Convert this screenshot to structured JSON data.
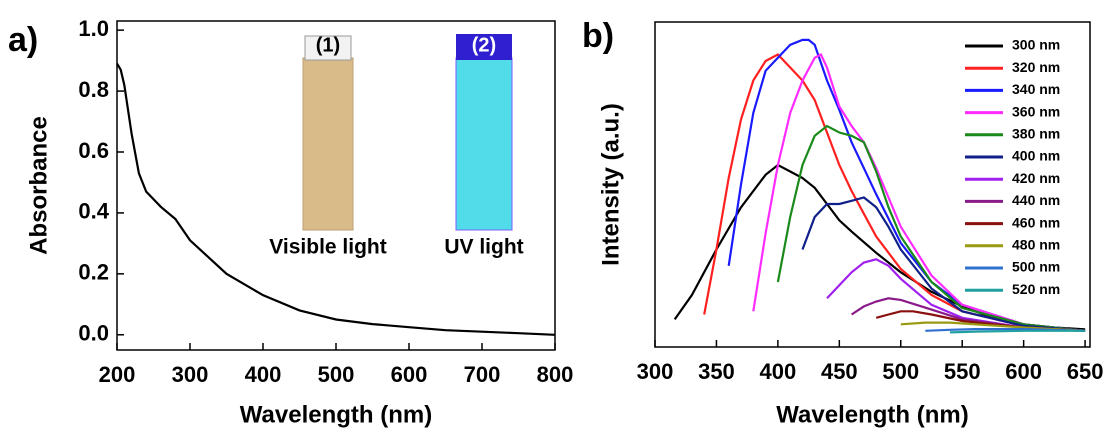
{
  "chart_data": [
    {
      "type": "line",
      "panel_label": "a)",
      "xlabel": "Wavelength (nm)",
      "ylabel": "Absorbance",
      "inset_labels": [
        "(1)",
        "(2)"
      ],
      "inset_captions": [
        "Visible light",
        "UV light"
      ],
      "xlim": [
        200,
        800
      ],
      "xticks": [
        200,
        300,
        400,
        500,
        600,
        700,
        800
      ],
      "ylim": [
        -0.05,
        1.03
      ],
      "yticks": [
        {
          "value": 0,
          "label": "0.0"
        },
        0.2,
        0.4,
        0.6,
        0.8,
        {
          "value": 1,
          "label": "1.0"
        }
      ],
      "series": [
        {
          "color": "#000000",
          "x": [
            200,
            205,
            210,
            220,
            230,
            240,
            260,
            280,
            300,
            350,
            400,
            450,
            500,
            550,
            600,
            650,
            700,
            750,
            800
          ],
          "values": [
            0.89,
            0.87,
            0.82,
            0.66,
            0.53,
            0.47,
            0.42,
            0.38,
            0.31,
            0.2,
            0.13,
            0.08,
            0.05,
            0.035,
            0.025,
            0.015,
            0.01,
            0.005,
            0.0
          ]
        }
      ]
    },
    {
      "type": "line",
      "panel_label": "b)",
      "xlabel": "Wavelength (nm)",
      "ylabel": "Intensity (a.u.)",
      "xlim": [
        300,
        654
      ],
      "xticks": [
        300,
        350,
        400,
        450,
        500,
        550,
        600,
        650
      ],
      "ylim": [
        0,
        1
      ],
      "series": [
        {
          "name": "300 nm",
          "color": "#000000",
          "x": [
            316,
            330,
            350,
            370,
            390,
            400,
            410,
            420,
            430,
            440,
            450,
            460,
            480,
            500,
            525,
            550,
            575,
            600,
            625,
            650
          ],
          "values": [
            0.085,
            0.16,
            0.3,
            0.43,
            0.53,
            0.56,
            0.54,
            0.52,
            0.49,
            0.44,
            0.39,
            0.355,
            0.29,
            0.23,
            0.17,
            0.125,
            0.09,
            0.07,
            0.06,
            0.054
          ]
        },
        {
          "name": "320 nm",
          "color": "#ff2020",
          "x": [
            340,
            350,
            360,
            370,
            380,
            390,
            400,
            410,
            420,
            430,
            440,
            450,
            460,
            470,
            480,
            500,
            525,
            550,
            600,
            650
          ],
          "values": [
            0.1,
            0.3,
            0.52,
            0.7,
            0.82,
            0.88,
            0.9,
            0.86,
            0.82,
            0.76,
            0.66,
            0.56,
            0.48,
            0.41,
            0.34,
            0.24,
            0.16,
            0.11,
            0.065,
            0.05
          ]
        },
        {
          "name": "340 nm",
          "color": "#1a1aff",
          "x": [
            360,
            370,
            380,
            390,
            400,
            410,
            420,
            425,
            430,
            440,
            450,
            460,
            470,
            480,
            500,
            525,
            550,
            600,
            650
          ],
          "values": [
            0.25,
            0.5,
            0.72,
            0.85,
            0.89,
            0.93,
            0.945,
            0.945,
            0.93,
            0.82,
            0.73,
            0.63,
            0.55,
            0.47,
            0.32,
            0.2,
            0.13,
            0.07,
            0.05
          ]
        },
        {
          "name": "360 nm",
          "color": "#ff2bff",
          "x": [
            380,
            390,
            400,
            410,
            420,
            430,
            435,
            440,
            450,
            460,
            470,
            480,
            490,
            500,
            525,
            550,
            600,
            650
          ],
          "values": [
            0.11,
            0.35,
            0.56,
            0.72,
            0.82,
            0.89,
            0.9,
            0.86,
            0.74,
            0.68,
            0.63,
            0.55,
            0.46,
            0.37,
            0.22,
            0.13,
            0.07,
            0.05
          ]
        },
        {
          "name": "380 nm",
          "color": "#1a8a1a",
          "x": [
            400,
            410,
            420,
            430,
            440,
            450,
            460,
            470,
            480,
            490,
            500,
            525,
            550,
            600,
            650
          ],
          "values": [
            0.2,
            0.4,
            0.56,
            0.65,
            0.68,
            0.66,
            0.65,
            0.63,
            0.54,
            0.43,
            0.34,
            0.2,
            0.12,
            0.07,
            0.05
          ]
        },
        {
          "name": "400 nm",
          "color": "#10208a",
          "x": [
            420,
            430,
            440,
            450,
            460,
            470,
            480,
            490,
            500,
            525,
            550,
            600,
            650
          ],
          "values": [
            0.3,
            0.4,
            0.44,
            0.44,
            0.45,
            0.46,
            0.43,
            0.37,
            0.3,
            0.18,
            0.11,
            0.065,
            0.05
          ]
        },
        {
          "name": "420 nm",
          "color": "#a020f0",
          "x": [
            440,
            450,
            460,
            470,
            480,
            490,
            500,
            525,
            550,
            600,
            650
          ],
          "values": [
            0.15,
            0.19,
            0.23,
            0.26,
            0.27,
            0.25,
            0.21,
            0.13,
            0.09,
            0.06,
            0.05
          ]
        },
        {
          "name": "440 nm",
          "color": "#8a1a8a",
          "x": [
            460,
            470,
            480,
            490,
            500,
            525,
            550,
            600,
            650
          ],
          "values": [
            0.1,
            0.125,
            0.14,
            0.15,
            0.145,
            0.115,
            0.085,
            0.06,
            0.05
          ]
        },
        {
          "name": "460 nm",
          "color": "#8a1010",
          "x": [
            480,
            490,
            500,
            510,
            525,
            550,
            600,
            650
          ],
          "values": [
            0.09,
            0.1,
            0.11,
            0.11,
            0.1,
            0.08,
            0.06,
            0.05
          ]
        },
        {
          "name": "480 nm",
          "color": "#9a9a10",
          "x": [
            500,
            520,
            540,
            560,
            600,
            650
          ],
          "values": [
            0.07,
            0.075,
            0.075,
            0.07,
            0.06,
            0.05
          ]
        },
        {
          "name": "500 nm",
          "color": "#3070d0",
          "x": [
            520,
            540,
            560,
            600,
            650
          ],
          "values": [
            0.05,
            0.053,
            0.055,
            0.055,
            0.05
          ]
        },
        {
          "name": "520 nm",
          "color": "#20a0a0",
          "x": [
            540,
            560,
            600,
            650
          ],
          "values": [
            0.045,
            0.047,
            0.05,
            0.05
          ]
        }
      ]
    }
  ]
}
